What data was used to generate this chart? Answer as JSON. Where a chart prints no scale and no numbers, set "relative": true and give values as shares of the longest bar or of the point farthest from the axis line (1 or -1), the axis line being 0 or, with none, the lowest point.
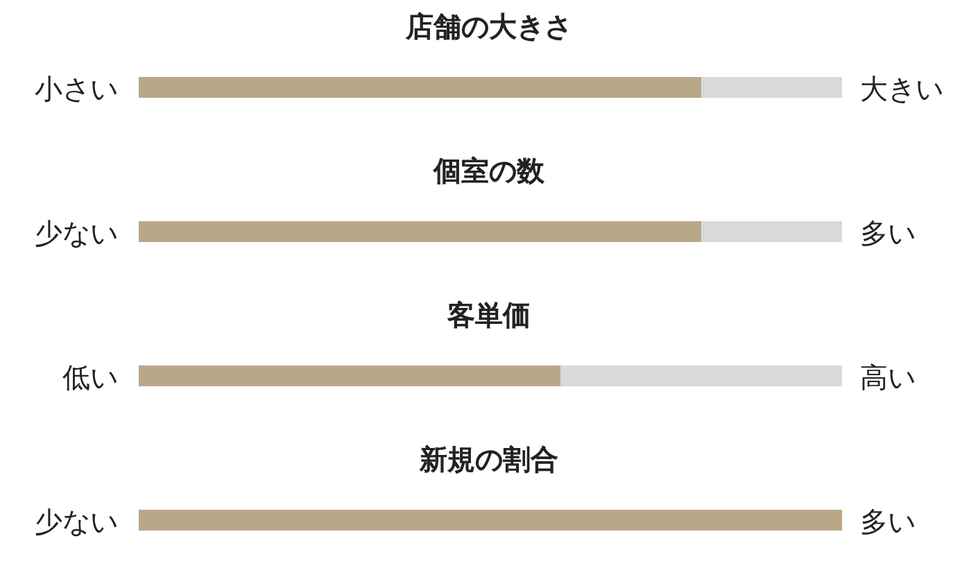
{
  "chart_data": {
    "type": "bar",
    "orientation": "horizontal",
    "stacked": true,
    "relative": true,
    "categories": [
      "店舗の大きさ",
      "個室の数",
      "客単価",
      "新規の割合"
    ],
    "annotations": [
      "小さい",
      "大きい",
      "少ない",
      "多い",
      "低い",
      "高い",
      "少ない",
      "多い"
    ],
    "series": [
      {
        "color": "#b8a888",
        "values": [
          0.8,
          0.8,
          0.6,
          1.0
        ]
      },
      {
        "color": "#d9d9d9",
        "values": [
          0.2,
          0.2,
          0.4,
          0.0
        ]
      }
    ]
  }
}
